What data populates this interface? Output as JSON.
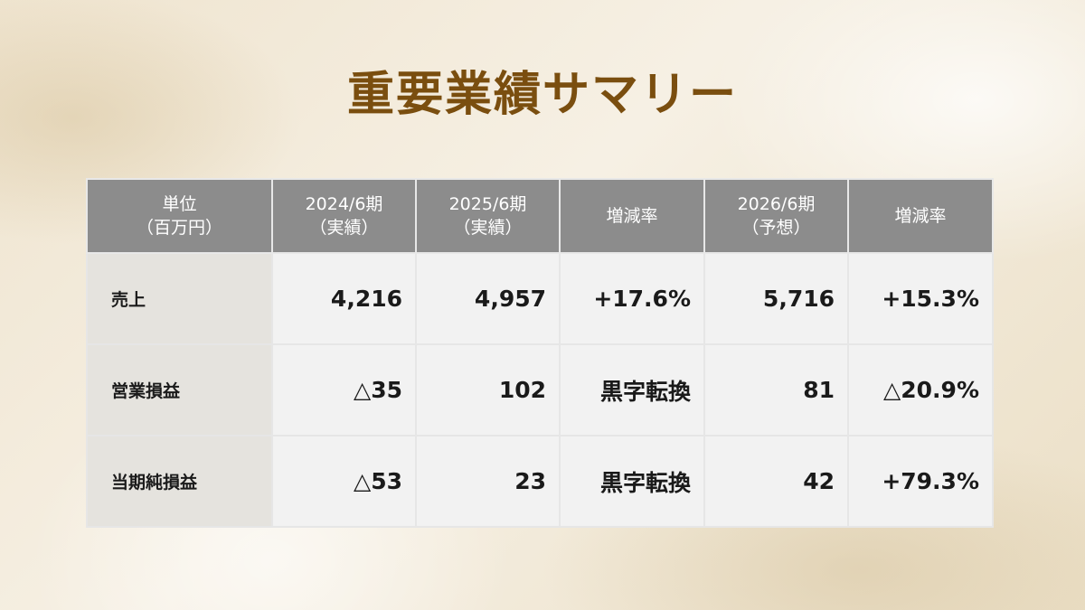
{
  "title": "重要業績サマリー",
  "table": {
    "header": [
      [
        "単位",
        "（百万円）"
      ],
      [
        "2024/6期",
        "（実績）"
      ],
      [
        "2025/6期",
        "（実績）"
      ],
      [
        "増減率"
      ],
      [
        "2026/6期",
        "（予想）"
      ],
      [
        "増減率"
      ]
    ],
    "rows": [
      [
        "売上",
        "4,216",
        "4,957",
        "+17.6%",
        "5,716",
        "+15.3%"
      ],
      [
        "営業損益",
        "△35",
        "102",
        "黒字転換",
        "81",
        "△20.9%"
      ],
      [
        "当期純損益",
        "△53",
        "23",
        "黒字転換",
        "42",
        "+79.3%"
      ]
    ]
  }
}
